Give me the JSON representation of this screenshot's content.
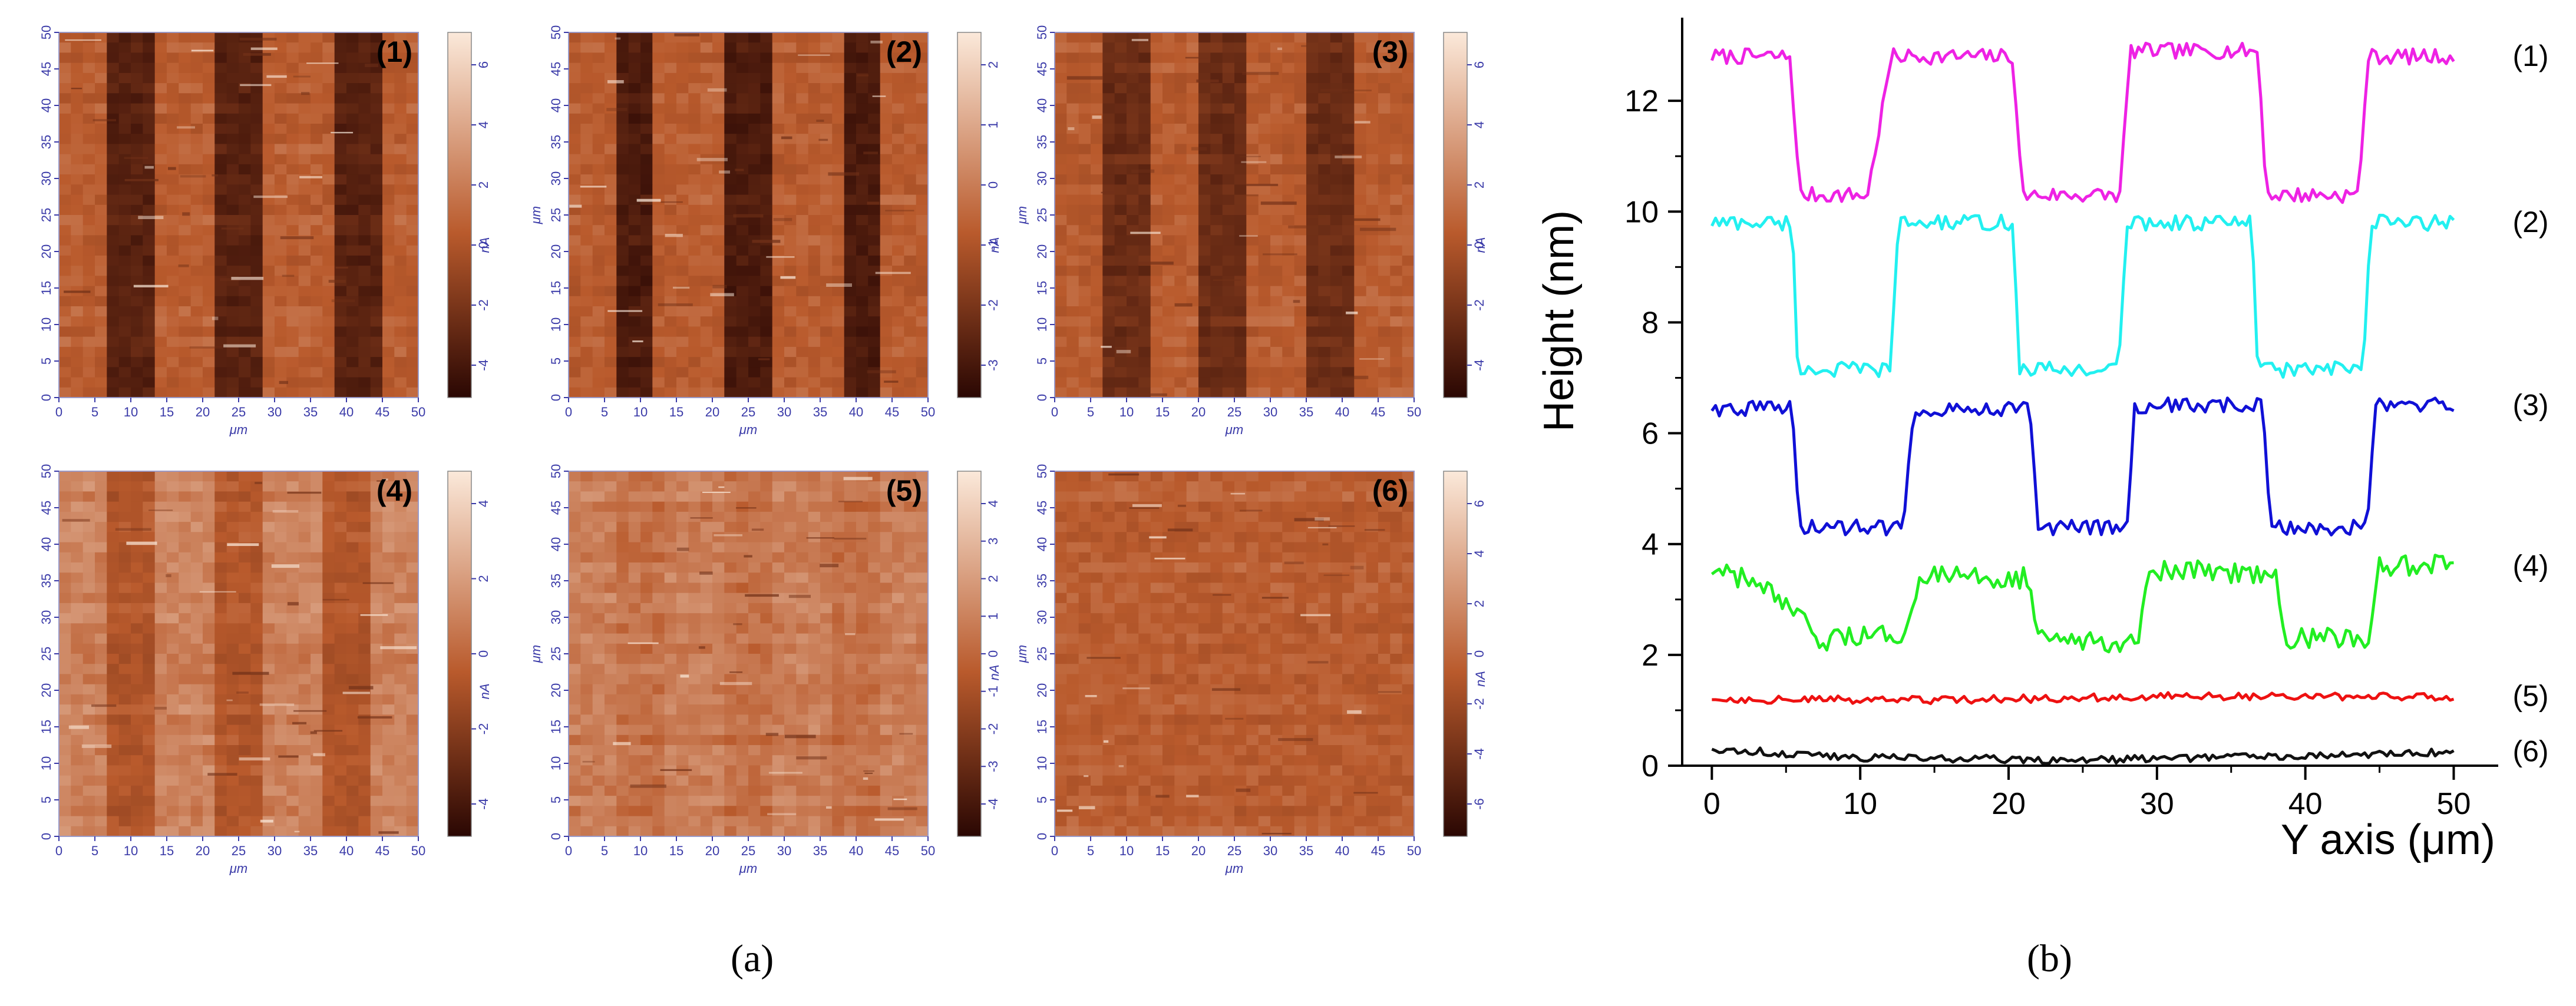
{
  "figure": {
    "panel_a_label": "(a)",
    "panel_b_label": "(b)"
  },
  "panel_a": {
    "xlabel": "μm",
    "ylabel": "μm",
    "colorbar_unit": "nA",
    "x_ticks": [
      "0",
      "5",
      "10",
      "15",
      "20",
      "25",
      "30",
      "35",
      "40",
      "45",
      "50"
    ],
    "y_ticks": [
      "0",
      "5",
      "10",
      "15",
      "20",
      "25",
      "30",
      "35",
      "40",
      "45",
      "50"
    ],
    "colors": {
      "dark": "#2a0703",
      "mid": "#b95a2c",
      "light": "#fbe9da",
      "tick": "#3a3aa8"
    },
    "maps": [
      {
        "label": "(1)",
        "cbar_ticks": [
          "6",
          "4",
          "2",
          "0",
          "-2",
          "-4"
        ],
        "stripe_contrast": 0.38,
        "stripes": [
          [
            6.2,
            12.8
          ],
          [
            22.3,
            28.4
          ],
          [
            38.2,
            44.2
          ]
        ]
      },
      {
        "label": "(2)",
        "cbar_ticks": [
          "2",
          "1",
          "0",
          "-1",
          "-2",
          "-3"
        ],
        "stripe_contrast": 0.42,
        "stripes": [
          [
            6.2,
            12.2
          ],
          [
            22.0,
            28.0
          ],
          [
            38.2,
            44.0
          ]
        ]
      },
      {
        "label": "(3)",
        "cbar_ticks": [
          "6",
          "4",
          "2",
          "0",
          "-2",
          "-4"
        ],
        "stripe_contrast": 0.3,
        "stripes": [
          [
            7.5,
            13.0
          ],
          [
            20.2,
            27.4
          ],
          [
            35.8,
            42.0
          ]
        ]
      },
      {
        "label": "(4)",
        "cbar_ticks": [
          "4",
          "2",
          "0",
          "-2",
          "-4"
        ],
        "stripe_contrast": 0.16,
        "stripes": [
          [
            6.2,
            13.8
          ],
          [
            21.5,
            29.0
          ],
          [
            36.8,
            44.0
          ]
        ]
      },
      {
        "label": "(5)",
        "cbar_ticks": [
          "4",
          "3",
          "2",
          "1",
          "0",
          "-1",
          "-2",
          "-3",
          "-4"
        ],
        "stripe_contrast": 0.04,
        "stripes": [
          [
            7.0,
            14.0
          ],
          [
            22.0,
            29.0
          ],
          [
            37.0,
            44.0
          ]
        ]
      },
      {
        "label": "(6)",
        "cbar_ticks": [
          "6",
          "4",
          "2",
          "0",
          "-2",
          "-4",
          "-6"
        ],
        "stripe_contrast": 0.0,
        "stripes": []
      }
    ]
  },
  "chart_data": {
    "type": "line",
    "title": "",
    "xlabel": "Y axis (μm)",
    "ylabel": "Height (nm)",
    "xlim": [
      -2,
      53
    ],
    "ylim": [
      0,
      13.5
    ],
    "x_ticks": [
      0,
      10,
      20,
      30,
      40,
      50
    ],
    "y_ticks": [
      0,
      2,
      4,
      6,
      8,
      10,
      12
    ],
    "grid": false,
    "legend": "inline-right",
    "series": [
      {
        "name": "(1)",
        "color": "#ee22e4",
        "high": 12.8,
        "low": 10.3,
        "noise": 0.14,
        "x": [
          0,
          5.3,
          5.9,
          10.5,
          12.1,
          20.3,
          20.9,
          27.5,
          28.2,
          36.8,
          37.4,
          43.6,
          44.2,
          50
        ],
        "y": [
          12.8,
          12.8,
          10.3,
          10.3,
          12.8,
          12.8,
          10.3,
          10.3,
          12.9,
          12.9,
          10.3,
          10.3,
          12.8,
          12.8
        ]
      },
      {
        "name": "(2)",
        "color": "#22f0f0",
        "high": 9.8,
        "low": 7.15,
        "noise": 0.14,
        "x": [
          0,
          5.4,
          5.8,
          12.0,
          12.6,
          20.3,
          20.7,
          27.4,
          28.0,
          36.4,
          36.8,
          43.9,
          44.4,
          50
        ],
        "y": [
          9.8,
          9.8,
          7.15,
          7.15,
          9.8,
          9.8,
          7.15,
          7.15,
          9.8,
          9.8,
          7.15,
          7.15,
          9.8,
          9.8
        ]
      },
      {
        "name": "(3)",
        "color": "#1010d6",
        "high": 6.45,
        "low": 4.3,
        "noise": 0.14,
        "x": [
          0,
          5.4,
          5.9,
          12.9,
          13.6,
          21.4,
          22.0,
          28.0,
          28.5,
          37.1,
          37.7,
          44.2,
          44.7,
          50
        ],
        "y": [
          6.45,
          6.45,
          4.3,
          4.3,
          6.45,
          6.45,
          4.3,
          4.3,
          6.5,
          6.5,
          4.3,
          4.3,
          6.5,
          6.5
        ]
      },
      {
        "name": "(4)",
        "color": "#22ee22",
        "high": 3.45,
        "low": 2.25,
        "noise": 0.2,
        "x": [
          0,
          3.0,
          7.5,
          12.8,
          14.0,
          21.4,
          22.0,
          28.7,
          29.3,
          38.0,
          38.6,
          44.4,
          45.0,
          50
        ],
        "y": [
          3.5,
          3.3,
          2.25,
          2.4,
          3.4,
          3.4,
          2.25,
          2.25,
          3.5,
          3.5,
          2.3,
          2.3,
          3.6,
          3.6
        ]
      },
      {
        "name": "(5)",
        "color": "#ee1111",
        "high": 1.2,
        "low": 1.2,
        "noise": 0.07,
        "x": [
          0,
          15,
          30,
          50
        ],
        "y": [
          1.2,
          1.18,
          1.25,
          1.25
        ]
      },
      {
        "name": "(6)",
        "color": "#111111",
        "high": 0.25,
        "low": 0.25,
        "noise": 0.07,
        "x": [
          0,
          10,
          25,
          50
        ],
        "y": [
          0.3,
          0.15,
          0.1,
          0.25
        ]
      }
    ]
  }
}
